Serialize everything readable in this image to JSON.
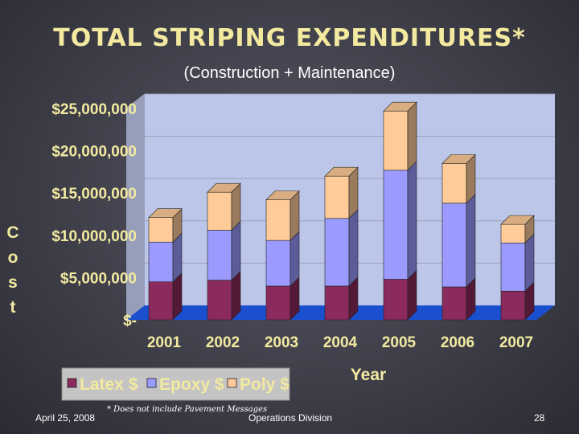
{
  "slide": {
    "title": "TOTAL STRIPING EXPENDITURES*",
    "footer_date": "April 25, 2008",
    "footnote": "* Does not include Pavement Messages",
    "footer_org": "Operations Division",
    "page_number": "28"
  },
  "colors": {
    "latex": "#8b2a5c",
    "epoxy": "#9a9aff",
    "poly": "#ffcc99",
    "plot_back": "#bcc6e8",
    "floor": "#1a4fd0"
  },
  "chart_data": {
    "type": "bar",
    "stacked": true,
    "title": "TOTAL STRIPING EXPENDITURES*",
    "subtitle": "(Construction + Maintenance)",
    "xlabel": "Year",
    "ylabel": "Cost",
    "categories": [
      "2001",
      "2002",
      "2003",
      "2004",
      "2005",
      "2006",
      "2007"
    ],
    "series": [
      {
        "name": "Latex $",
        "values": [
          4500000,
          4700000,
          4000000,
          4000000,
          4800000,
          3900000,
          3400000
        ]
      },
      {
        "name": "Epoxy $",
        "values": [
          4700000,
          5900000,
          5400000,
          8000000,
          12900000,
          9900000,
          5700000
        ]
      },
      {
        "name": "Poly $",
        "values": [
          2900000,
          4500000,
          4800000,
          5000000,
          7000000,
          4700000,
          2200000
        ]
      }
    ],
    "yticks": [
      "$-",
      "$5,000,000",
      "$10,000,000",
      "$15,000,000",
      "$20,000,000",
      "$25,000,000"
    ],
    "ylim": [
      0,
      25000000
    ],
    "grid": true,
    "legend_position": "bottom-left"
  }
}
